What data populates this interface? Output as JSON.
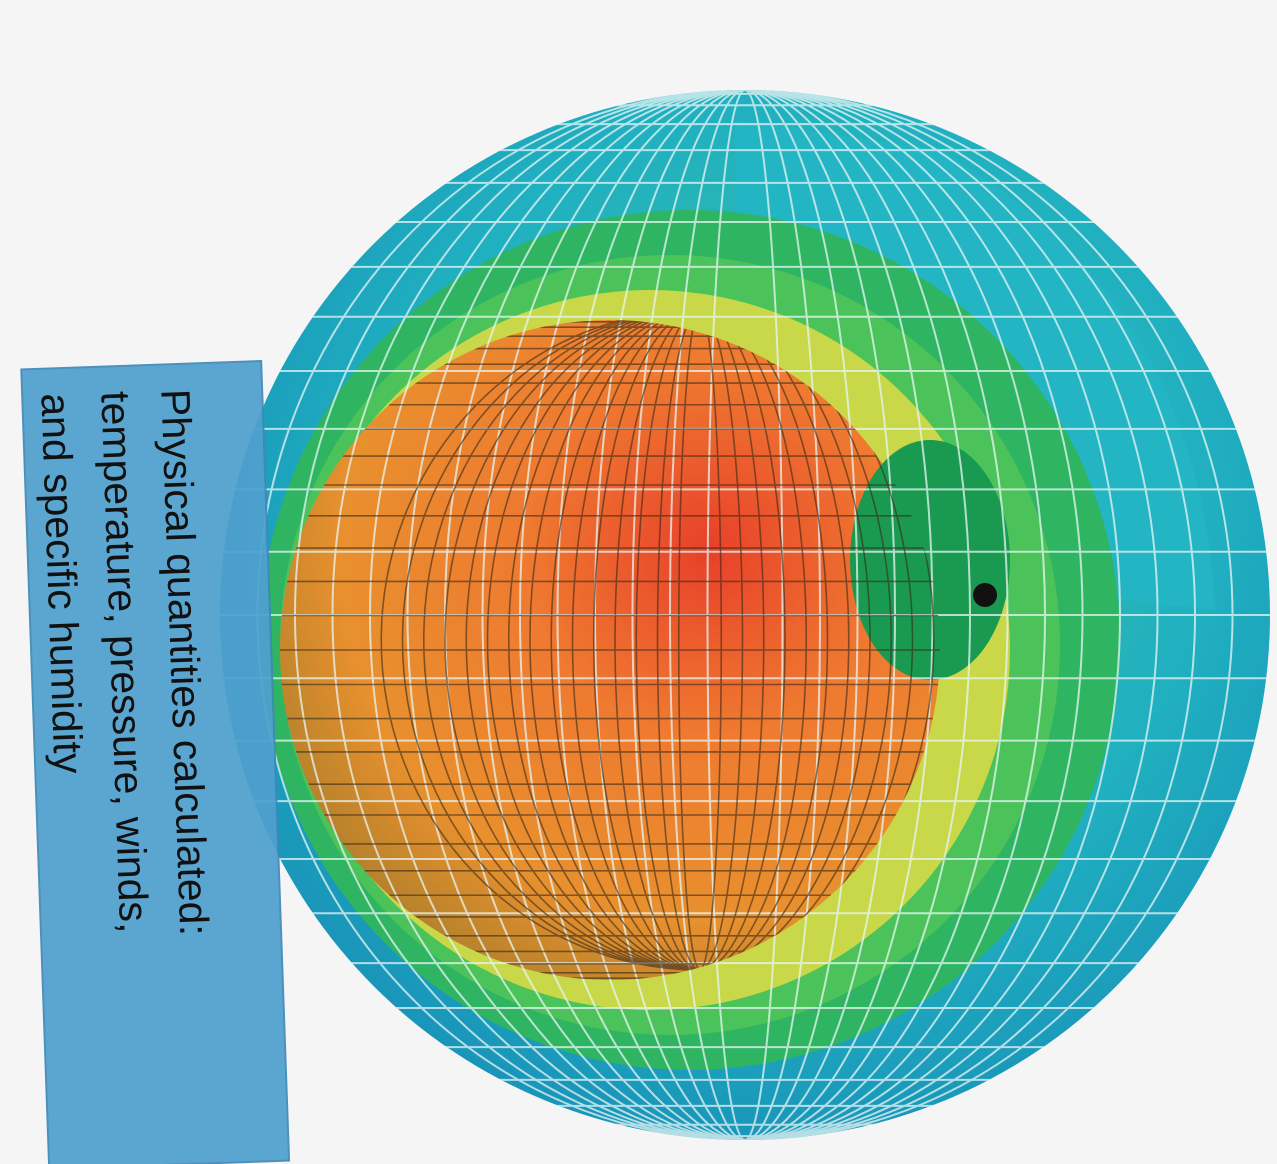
{
  "callout": {
    "lines": [
      "Physical quantities calculated:",
      "temperature, pressure, winds,",
      "and specific humidity"
    ]
  }
}
